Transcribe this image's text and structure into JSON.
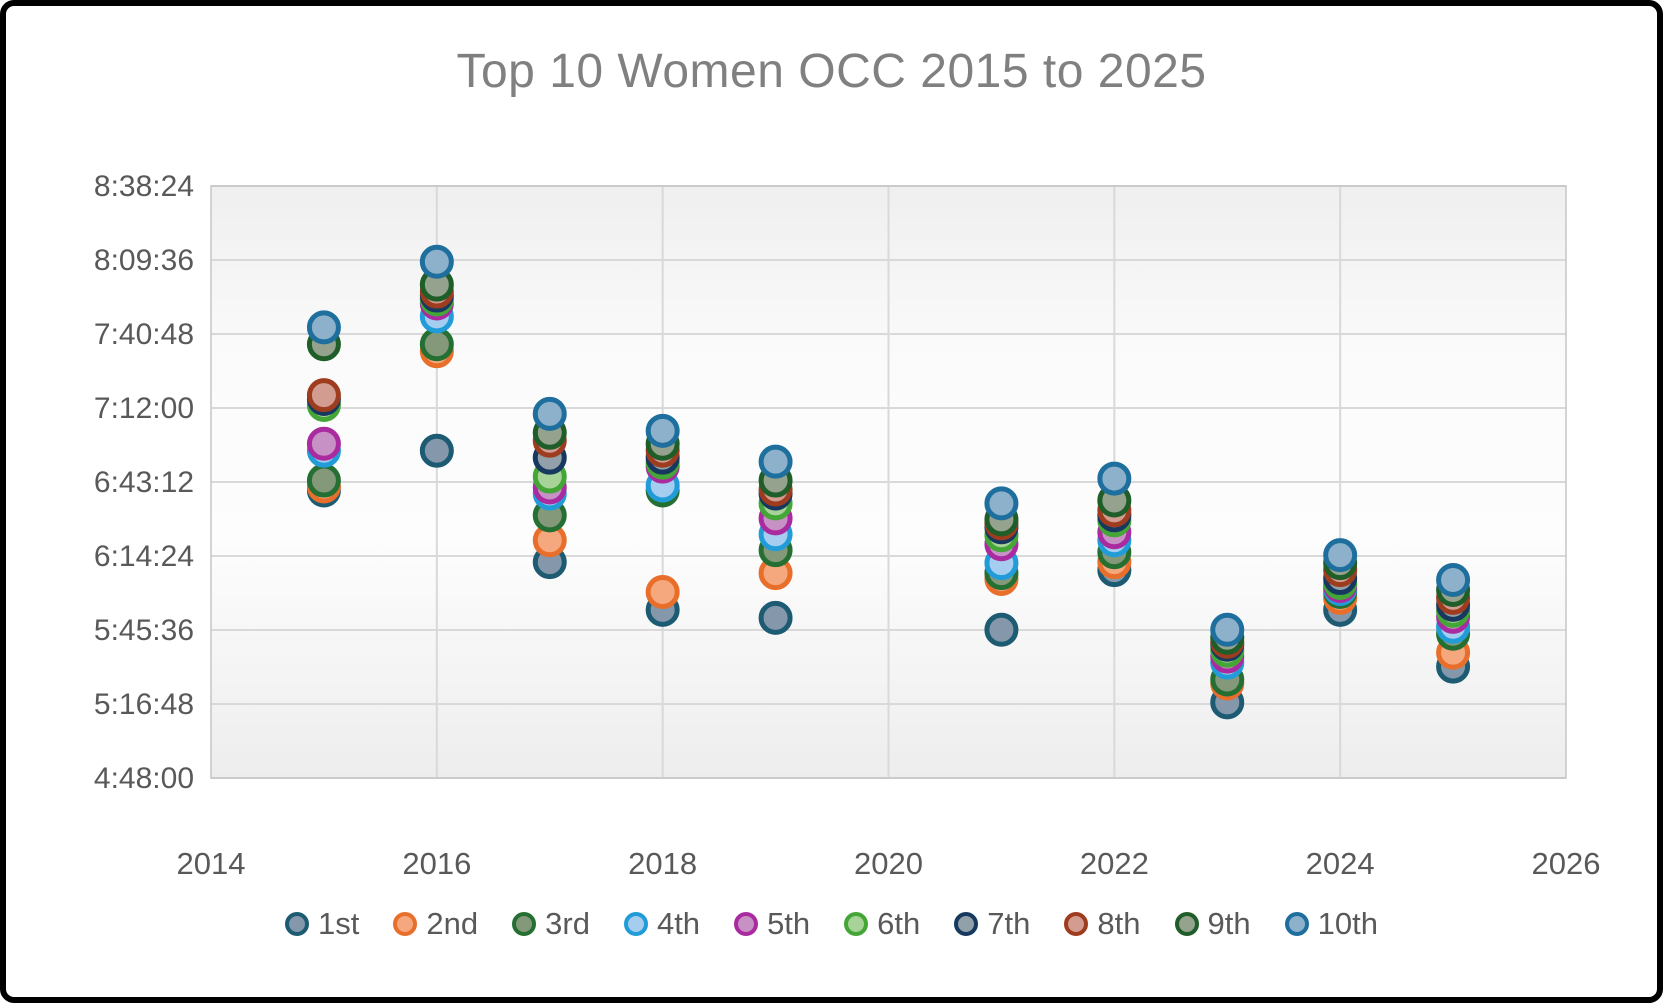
{
  "title": "Top 10 Women OCC 2015 to 2025",
  "chart_data": {
    "type": "scatter",
    "title": "Top 10 Women OCC 2015 to 2025",
    "x_axis": {
      "min": 2014,
      "max": 2026,
      "tick_values": [
        2014,
        2016,
        2018,
        2020,
        2022,
        2024,
        2026
      ],
      "tick_labels": [
        "2014",
        "2016",
        "2018",
        "2020",
        "2022",
        "2024",
        "2026"
      ]
    },
    "y_axis": {
      "min": "4:48:00",
      "max": "8:38:24",
      "tick_labels": [
        "8:38:24",
        "8:09:36",
        "7:40:48",
        "7:12:00",
        "6:43:12",
        "6:14:24",
        "5:45:36",
        "5:16:48",
        "4:48:00"
      ]
    },
    "grid": true,
    "legend_position": "bottom",
    "marker_shape": "circle",
    "years": [
      2015,
      2016,
      2017,
      2018,
      2019,
      2021,
      2022,
      2023,
      2024,
      2025
    ],
    "series": [
      {
        "name": "1st",
        "fill": "#8497ab",
        "stroke": "#1d5b73",
        "values": [
          "6:39:54",
          "6:55:23",
          "6:12:01",
          "5:53:26",
          "5:50:20",
          "5:45:41",
          "6:08:55",
          "5:17:25",
          "5:53:26",
          "5:31:22"
        ]
      },
      {
        "name": "2nd",
        "fill": "#f5a87d",
        "stroke": "#e86f2b",
        "values": [
          "6:41:27",
          "7:34:06",
          "6:20:32",
          "6:00:24",
          "6:07:45",
          "6:05:26",
          "6:12:01",
          "5:24:47",
          "5:58:05",
          "5:36:47"
        ]
      },
      {
        "name": "3rd",
        "fill": "#84997a",
        "stroke": "#266f33",
        "values": [
          "6:43:46",
          "7:36:48",
          "6:30:13",
          "6:39:54",
          "6:16:40",
          "6:07:45",
          "6:15:53",
          "5:26:20",
          "6:00:24",
          "5:44:08"
        ]
      },
      {
        "name": "4th",
        "fill": "#a5cdef",
        "stroke": "#219cd8",
        "values": [
          "6:55:23",
          "7:47:39",
          "6:38:44",
          "6:41:50",
          "6:22:51",
          "6:11:38",
          "6:20:32",
          "5:32:55",
          "6:01:34",
          "5:46:51"
        ]
      },
      {
        "name": "5th",
        "fill": "#c891c5",
        "stroke": "#aa2ba0",
        "values": [
          "6:58:05",
          "7:52:41",
          "6:41:03",
          "6:49:11",
          "6:29:03",
          "6:18:59",
          "6:23:38",
          "5:35:14",
          "6:02:43",
          "5:50:43"
        ]
      },
      {
        "name": "6th",
        "fill": "#a7d399",
        "stroke": "#43a637",
        "values": [
          "7:13:11",
          "7:54:14",
          "6:45:19",
          "6:50:44",
          "6:34:52",
          "6:22:28",
          "6:28:17",
          "5:37:33",
          "6:03:53",
          "5:53:03"
        ]
      },
      {
        "name": "7th",
        "fill": "#92a0aa",
        "stroke": "#17395f",
        "values": [
          "7:15:31",
          "7:55:46",
          "6:52:40",
          "6:52:40",
          "6:38:44",
          "6:25:34",
          "6:30:13",
          "5:39:53",
          "6:05:49",
          "5:55:22"
        ]
      },
      {
        "name": "8th",
        "fill": "#d39c90",
        "stroke": "#9d3c1e",
        "values": [
          "7:17:00",
          "7:57:19",
          "6:59:15",
          "6:55:23",
          "6:40:17",
          "6:27:07",
          "6:32:09",
          "5:41:03",
          "6:08:55",
          "5:58:05"
        ]
      },
      {
        "name": "9th",
        "fill": "#95a28d",
        "stroke": "#1f5d29",
        "values": [
          "7:36:48",
          "8:00:02",
          "7:02:21",
          "6:58:05",
          "6:43:46",
          "6:28:40",
          "6:36:01",
          "5:42:35",
          "6:11:38",
          "6:01:10"
        ]
      },
      {
        "name": "10th",
        "fill": "#8db1ca",
        "stroke": "#1e6f9e",
        "values": [
          "7:43:23",
          "8:08:56",
          "7:09:42",
          "7:03:07",
          "6:51:07",
          "6:34:52",
          "6:44:32",
          "5:45:41",
          "6:14:44",
          "6:05:03"
        ]
      }
    ],
    "colors": {
      "title_text": "#808080",
      "axis_text": "#595959",
      "legend_text": "#595959",
      "gridline": "#d9d9d9",
      "plot_border": "#c6c6c6"
    }
  }
}
